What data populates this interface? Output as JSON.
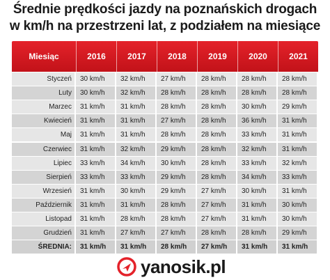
{
  "chart_data": {
    "type": "table",
    "title_line1": "Średnie prędkości jazdy na poznańskich drogach",
    "title_line2": "w km/h na przestrzeni lat, z podziałem na miesiące",
    "corner_header": "Miesiąc",
    "columns": [
      "2016",
      "2017",
      "2018",
      "2019",
      "2020",
      "2021"
    ],
    "rows": [
      {
        "label": "Styczeń",
        "values": [
          "30 km/h",
          "32 km/h",
          "27 km/h",
          "28 km/h",
          "28 km/h",
          "28 km/h"
        ]
      },
      {
        "label": "Luty",
        "values": [
          "30 km/h",
          "32 km/h",
          "28 km/h",
          "28 km/h",
          "28 km/h",
          "28 km/h"
        ]
      },
      {
        "label": "Marzec",
        "values": [
          "31 km/h",
          "31 km/h",
          "28 km/h",
          "28 km/h",
          "30 km/h",
          "29 km/h"
        ]
      },
      {
        "label": "Kwiecień",
        "values": [
          "31 km/h",
          "31 km/h",
          "27 km/h",
          "28 km/h",
          "36 km/h",
          "31 km/h"
        ]
      },
      {
        "label": "Maj",
        "values": [
          "31 km/h",
          "31 km/h",
          "28 km/h",
          "28 km/h",
          "33 km/h",
          "31 km/h"
        ]
      },
      {
        "label": "Czerwiec",
        "values": [
          "31 km/h",
          "32 km/h",
          "29 km/h",
          "28 km/h",
          "32 km/h",
          "31 km/h"
        ]
      },
      {
        "label": "Lipiec",
        "values": [
          "33 km/h",
          "34 km/h",
          "30 km/h",
          "28 km/h",
          "33 km/h",
          "32 km/h"
        ]
      },
      {
        "label": "Sierpień",
        "values": [
          "33 km/h",
          "33 km/h",
          "29 km/h",
          "28 km/h",
          "34 km/h",
          "33 km/h"
        ]
      },
      {
        "label": "Wrzesień",
        "values": [
          "31 km/h",
          "30 km/h",
          "29 km/h",
          "27 km/h",
          "30 km/h",
          "31 km/h"
        ]
      },
      {
        "label": "Październik",
        "values": [
          "31 km/h",
          "31 km/h",
          "28 km/h",
          "27 km/h",
          "31 km/h",
          "30 km/h"
        ]
      },
      {
        "label": "Listopad",
        "values": [
          "31 km/h",
          "28 km/h",
          "28 km/h",
          "27 km/h",
          "31 km/h",
          "30 km/h"
        ]
      },
      {
        "label": "Grudzień",
        "values": [
          "31 km/h",
          "27 km/h",
          "27 km/h",
          "28 km/h",
          "28 km/h",
          "29 km/h"
        ]
      }
    ],
    "summary": {
      "label": "ŚREDNIA:",
      "values": [
        "31 km/h",
        "31 km/h",
        "28 km/h",
        "27 km/h",
        "31 km/h",
        "31 km/h"
      ]
    },
    "header_color": "#d61a22"
  },
  "logo": {
    "text": "yanosik.pl",
    "icon": "yanosik-logo-icon",
    "color": "#e4222a"
  }
}
